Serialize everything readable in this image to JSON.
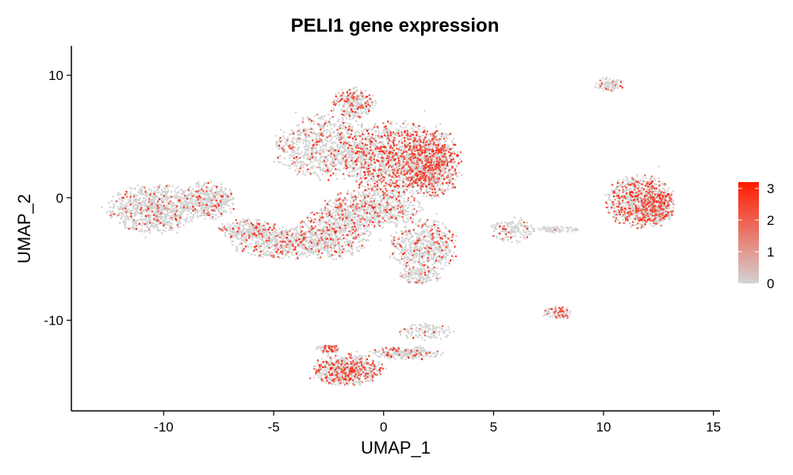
{
  "chart_data": {
    "type": "scatter",
    "title": "PELI1 gene expression",
    "xlabel": "UMAP_1",
    "ylabel": "UMAP_2",
    "xlim": [
      -14.2,
      15.3
    ],
    "ylim": [
      -17.4,
      12.4
    ],
    "x_ticks": [
      -10,
      -5,
      0,
      5,
      10,
      15
    ],
    "y_ticks": [
      -10,
      0,
      10
    ],
    "x_tick_labels": [
      "-10",
      "-5",
      "0",
      "5",
      "10",
      "15"
    ],
    "y_tick_labels": [
      "-10",
      "0",
      "10"
    ],
    "grid": false,
    "legend": {
      "placement": "right",
      "type": "colorbar",
      "min": 0,
      "max": 3.2,
      "ticks": [
        0,
        1,
        2,
        3
      ],
      "tick_labels": [
        "0",
        "1",
        "2",
        "3"
      ],
      "low_color": "#d3d3d3",
      "high_color": "#ff1a00"
    },
    "low_expression_color": "#d3d3d3",
    "high_expression_color": "#ff1a00",
    "clusters": [
      {
        "name": "left-cluster",
        "cx": -10.5,
        "cy": -0.8,
        "rx": 1.9,
        "ry": 1.8,
        "expr": 0.08,
        "n": 900
      },
      {
        "name": "left-bridge",
        "cx": -8.0,
        "cy": -0.2,
        "rx": 1.1,
        "ry": 1.4,
        "expr": 0.12,
        "n": 450
      },
      {
        "name": "left-connector",
        "cx": -6.3,
        "cy": -2.5,
        "rx": 1.2,
        "ry": 0.8,
        "expr": 0.12,
        "n": 250
      },
      {
        "name": "left-central-arm",
        "cx": -4.6,
        "cy": -3.6,
        "rx": 2.1,
        "ry": 1.2,
        "expr": 0.16,
        "n": 600
      },
      {
        "name": "central-lower-left",
        "cx": -2.3,
        "cy": -2.8,
        "rx": 1.5,
        "ry": 2.0,
        "expr": 0.18,
        "n": 600
      },
      {
        "name": "central-upper-left",
        "cx": -2.6,
        "cy": 4.2,
        "rx": 2.2,
        "ry": 2.4,
        "expr": 0.14,
        "n": 900
      },
      {
        "name": "central-top-lobe",
        "cx": -1.4,
        "cy": 7.8,
        "rx": 0.9,
        "ry": 1.1,
        "expr": 0.2,
        "n": 300
      },
      {
        "name": "central-main",
        "cx": 0.5,
        "cy": 3.2,
        "rx": 2.1,
        "ry": 2.8,
        "expr": 0.3,
        "n": 1400
      },
      {
        "name": "central-right",
        "cx": 2.2,
        "cy": 2.8,
        "rx": 1.2,
        "ry": 2.6,
        "expr": 0.34,
        "n": 900
      },
      {
        "name": "central-middle",
        "cx": -0.6,
        "cy": -0.8,
        "rx": 2.1,
        "ry": 1.5,
        "expr": 0.18,
        "n": 700
      },
      {
        "name": "central-lower-right",
        "cx": 1.8,
        "cy": -3.8,
        "rx": 1.4,
        "ry": 2.0,
        "expr": 0.14,
        "n": 600
      },
      {
        "name": "central-bottom-tail",
        "cx": 1.6,
        "cy": -6.3,
        "rx": 0.9,
        "ry": 0.6,
        "expr": 0.06,
        "n": 150
      },
      {
        "name": "middle-right-small",
        "cx": 5.8,
        "cy": -2.6,
        "rx": 0.9,
        "ry": 0.9,
        "expr": 0.08,
        "n": 150
      },
      {
        "name": "middle-right-strand",
        "cx": 7.9,
        "cy": -2.5,
        "rx": 1.1,
        "ry": 0.25,
        "expr": 0.06,
        "n": 80
      },
      {
        "name": "right-cluster",
        "cx": 11.6,
        "cy": -0.2,
        "rx": 1.4,
        "ry": 2.0,
        "expr": 0.3,
        "n": 800
      },
      {
        "name": "right-cluster-body",
        "cx": 12.3,
        "cy": -0.8,
        "rx": 0.8,
        "ry": 1.3,
        "expr": 0.32,
        "n": 400
      },
      {
        "name": "top-right-cluster",
        "cx": 10.2,
        "cy": 9.3,
        "rx": 0.6,
        "ry": 0.5,
        "expr": 0.12,
        "n": 100
      },
      {
        "name": "small-right-lower",
        "cx": 7.9,
        "cy": -9.3,
        "rx": 0.6,
        "ry": 0.5,
        "expr": 0.22,
        "n": 100
      },
      {
        "name": "bottom-cluster",
        "cx": -1.7,
        "cy": -14.0,
        "rx": 1.5,
        "ry": 1.2,
        "expr": 0.3,
        "n": 700
      },
      {
        "name": "bottom-arm",
        "cx": 1.0,
        "cy": -12.6,
        "rx": 1.5,
        "ry": 0.5,
        "expr": 0.12,
        "n": 250
      },
      {
        "name": "bottom-upper-arm",
        "cx": 1.9,
        "cy": -10.9,
        "rx": 1.2,
        "ry": 0.6,
        "expr": 0.04,
        "n": 120
      },
      {
        "name": "bottom-left-tip",
        "cx": -2.6,
        "cy": -12.3,
        "rx": 0.5,
        "ry": 0.4,
        "expr": 0.3,
        "n": 80
      }
    ]
  }
}
